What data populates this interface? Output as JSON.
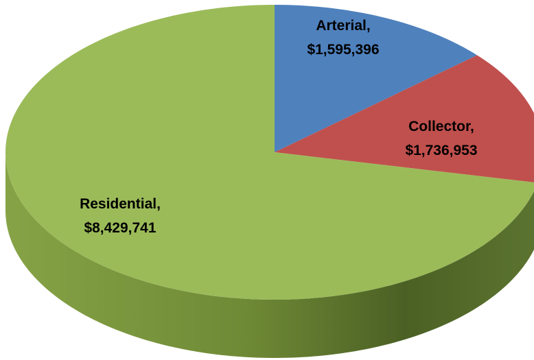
{
  "chart_data": {
    "type": "pie",
    "categories": [
      "Arterial,",
      "Collector,",
      "Residential,"
    ],
    "values": [
      1595396,
      1736953,
      8429741
    ],
    "value_labels": [
      "$1,595,396",
      "$1,736,953",
      "$8,429,741"
    ],
    "colors": [
      "#4f81bd",
      "#c0504d",
      "#9bbb59"
    ],
    "start_angle": 0,
    "direction": "clockwise",
    "three_d": true
  }
}
